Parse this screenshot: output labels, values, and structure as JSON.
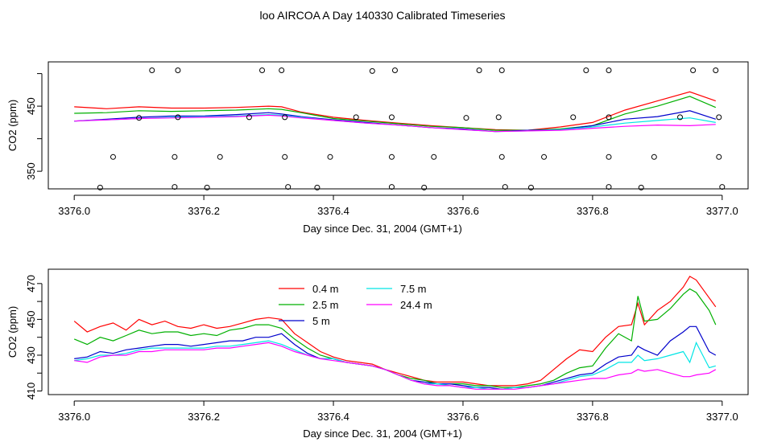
{
  "title": "loo AIRCOA A  Day 140330  Calibrated Timeseries",
  "chart_data": [
    {
      "type": "line",
      "ylabel": "CO2 (ppm)",
      "xlabel": "Day since Dec. 31, 2004 (GMT+1)",
      "xlim": [
        3375.96,
        3377.04
      ],
      "ylim": [
        323,
        518
      ],
      "x_ticks": [
        "3376.0",
        "3376.2",
        "3376.4",
        "3376.6",
        "3376.8",
        "3377.0"
      ],
      "y_ticks": [
        "350",
        "450"
      ],
      "y_tick_values": [
        350,
        400,
        450,
        500
      ],
      "x": [
        3376.0,
        3376.05,
        3376.1,
        3376.15,
        3376.2,
        3376.25,
        3376.3,
        3376.32,
        3376.35,
        3376.4,
        3376.45,
        3376.5,
        3376.55,
        3376.6,
        3376.65,
        3376.7,
        3376.75,
        3376.8,
        3376.85,
        3376.9,
        3376.95,
        3376.99
      ],
      "series": [
        {
          "name": "0.4 m",
          "color": "#ff0000",
          "values": [
            449,
            446,
            449,
            447,
            447,
            448,
            450,
            449,
            441,
            433,
            428,
            424,
            420,
            417,
            414,
            413,
            418,
            425,
            444,
            458,
            472,
            458
          ]
        },
        {
          "name": "2.5 m",
          "color": "#00b000",
          "values": [
            439,
            440,
            443,
            442,
            443,
            444,
            446,
            445,
            440,
            431,
            427,
            423,
            419,
            417,
            413,
            413,
            415,
            420,
            438,
            450,
            465,
            448
          ]
        },
        {
          "name": "5 m",
          "color": "#0000cc",
          "values": [
            427,
            430,
            433,
            435,
            435,
            437,
            440,
            438,
            434,
            429,
            425,
            421,
            417,
            415,
            411,
            413,
            414,
            420,
            430,
            434,
            443,
            430
          ]
        },
        {
          "name": "7.5 m",
          "color": "#00e5e5",
          "values": [
            427,
            429,
            431,
            433,
            434,
            435,
            437,
            436,
            433,
            428,
            424,
            421,
            417,
            414,
            411,
            412,
            414,
            418,
            424,
            428,
            432,
            425
          ]
        },
        {
          "name": "24.4 m",
          "color": "#ff00ff",
          "values": [
            427,
            429,
            431,
            432,
            433,
            434,
            436,
            435,
            432,
            428,
            424,
            421,
            417,
            414,
            411,
            412,
            413,
            416,
            419,
            421,
            420,
            422
          ]
        }
      ],
      "points": {
        "x": [
          3376.12,
          3376.16,
          3376.29,
          3376.32,
          3376.46,
          3376.495,
          3376.625,
          3376.66,
          3376.79,
          3376.825,
          3376.955,
          3376.99,
          3376.1,
          3376.16,
          3376.27,
          3376.325,
          3376.435,
          3376.49,
          3376.605,
          3376.655,
          3376.77,
          3376.825,
          3376.935,
          3376.995,
          3376.06,
          3376.155,
          3376.225,
          3376.325,
          3376.395,
          3376.49,
          3376.555,
          3376.66,
          3376.725,
          3376.825,
          3376.895,
          3376.995,
          3376.04,
          3376.155,
          3376.205,
          3376.33,
          3376.375,
          3376.49,
          3376.54,
          3376.665,
          3376.705,
          3376.825,
          3376.875,
          3377.0
        ],
        "y": [
          505,
          505,
          505,
          505,
          504,
          505,
          505,
          505,
          505,
          505,
          505,
          505,
          432,
          433,
          433,
          433,
          433,
          433,
          432,
          433,
          433,
          433,
          433,
          433,
          372,
          372,
          372,
          372,
          372,
          372,
          372,
          372,
          372,
          372,
          372,
          372,
          325,
          326,
          325,
          326,
          325,
          326,
          325,
          326,
          325,
          326,
          325,
          326
        ]
      }
    },
    {
      "type": "line",
      "ylabel": "CO2 (ppm)",
      "xlabel": "Day since Dec. 31, 2004 (GMT+1)",
      "xlim": [
        3375.96,
        3377.04
      ],
      "ylim": [
        408,
        478
      ],
      "x_ticks": [
        "3376.0",
        "3376.2",
        "3376.4",
        "3376.6",
        "3376.8",
        "3377.0"
      ],
      "y_ticks": [
        "410",
        "430",
        "450",
        "470"
      ],
      "y_tick_values": [
        410,
        420,
        430,
        440,
        450,
        460,
        470
      ],
      "legend": "top-left",
      "x": [
        3376.0,
        3376.02,
        3376.04,
        3376.06,
        3376.08,
        3376.1,
        3376.12,
        3376.14,
        3376.16,
        3376.18,
        3376.2,
        3376.22,
        3376.24,
        3376.26,
        3376.28,
        3376.3,
        3376.32,
        3376.34,
        3376.36,
        3376.38,
        3376.4,
        3376.42,
        3376.44,
        3376.46,
        3376.48,
        3376.5,
        3376.52,
        3376.54,
        3376.56,
        3376.58,
        3376.6,
        3376.62,
        3376.64,
        3376.66,
        3376.68,
        3376.7,
        3376.72,
        3376.74,
        3376.76,
        3376.78,
        3376.8,
        3376.82,
        3376.84,
        3376.86,
        3376.87,
        3376.88,
        3376.9,
        3376.92,
        3376.94,
        3376.95,
        3376.96,
        3376.98,
        3376.99
      ],
      "series": [
        {
          "name": "0.4 m",
          "color": "#ff0000",
          "values": [
            449,
            443,
            446,
            448,
            444,
            450,
            447,
            449,
            446,
            445,
            447,
            445,
            446,
            448,
            450,
            451,
            450,
            442,
            437,
            432,
            429,
            427,
            426,
            425,
            422,
            420,
            418,
            416,
            415,
            415,
            415,
            414,
            413,
            413,
            413,
            414,
            416,
            422,
            428,
            433,
            432,
            440,
            446,
            447,
            459,
            447,
            455,
            460,
            468,
            474,
            472,
            462,
            457
          ]
        },
        {
          "name": "2.5 m",
          "color": "#00b000",
          "values": [
            439,
            436,
            440,
            438,
            441,
            444,
            442,
            443,
            443,
            441,
            442,
            441,
            444,
            445,
            447,
            447,
            445,
            439,
            434,
            430,
            428,
            426,
            425,
            424,
            422,
            419,
            417,
            416,
            414,
            414,
            414,
            413,
            413,
            412,
            412,
            413,
            414,
            416,
            420,
            423,
            424,
            434,
            442,
            438,
            463,
            449,
            450,
            456,
            464,
            467,
            465,
            455,
            447
          ]
        },
        {
          "name": "5 m",
          "color": "#0000cc",
          "values": [
            428,
            429,
            432,
            431,
            433,
            434,
            435,
            436,
            436,
            435,
            436,
            437,
            438,
            438,
            440,
            440,
            442,
            436,
            431,
            428,
            428,
            426,
            425,
            424,
            422,
            419,
            416,
            415,
            414,
            414,
            413,
            412,
            412,
            411,
            412,
            412,
            413,
            415,
            417,
            419,
            420,
            425,
            429,
            430,
            435,
            433,
            430,
            438,
            443,
            446,
            446,
            432,
            430
          ]
        },
        {
          "name": "7.5 m",
          "color": "#00e5e5",
          "values": [
            427,
            428,
            430,
            430,
            431,
            433,
            434,
            434,
            434,
            434,
            434,
            435,
            435,
            436,
            437,
            438,
            436,
            433,
            430,
            428,
            428,
            426,
            425,
            424,
            422,
            419,
            416,
            414,
            414,
            413,
            412,
            412,
            411,
            411,
            412,
            412,
            413,
            414,
            416,
            418,
            419,
            422,
            426,
            426,
            430,
            427,
            428,
            430,
            432,
            426,
            437,
            423,
            424
          ]
        },
        {
          "name": "24.4 m",
          "color": "#ff00ff",
          "values": [
            427,
            426,
            429,
            430,
            430,
            432,
            432,
            433,
            433,
            433,
            433,
            434,
            434,
            435,
            436,
            437,
            435,
            432,
            430,
            428,
            427,
            426,
            425,
            424,
            422,
            419,
            416,
            414,
            413,
            413,
            412,
            411,
            411,
            411,
            411,
            412,
            413,
            414,
            415,
            416,
            417,
            417,
            419,
            420,
            422,
            421,
            422,
            420,
            418,
            418,
            419,
            420,
            422
          ]
        }
      ]
    }
  ]
}
